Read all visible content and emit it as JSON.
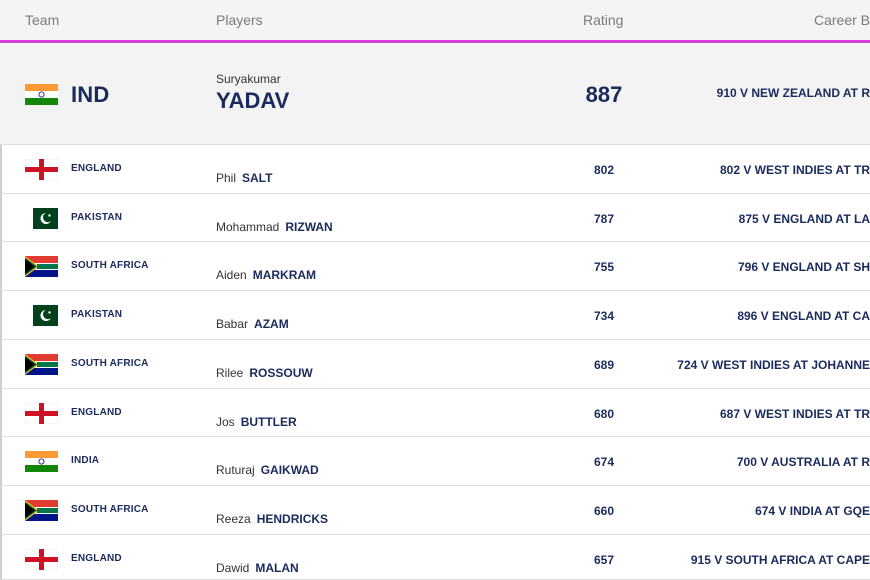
{
  "table": {
    "columns": [
      "Team",
      "Players",
      "Rating",
      "Career B"
    ],
    "rows": [
      [
        "IND",
        "Suryakumar",
        "YADAV",
        "887",
        "910 V NEW ZEALAND AT R"
      ],
      [
        "ENGLAND",
        "Phil",
        "SALT",
        "802",
        "802 V WEST INDIES AT TR"
      ],
      [
        "PAKISTAN",
        "Mohammad",
        "RIZWAN",
        "787",
        "875 V ENGLAND AT LA"
      ],
      [
        "SOUTH AFRICA",
        "Aiden",
        "MARKRAM",
        "755",
        "796 V ENGLAND AT SH"
      ],
      [
        "PAKISTAN",
        "Babar",
        "AZAM",
        "734",
        "896 V ENGLAND AT CA"
      ],
      [
        "SOUTH AFRICA",
        "Rilee",
        "ROSSOUW",
        "689",
        "724 V WEST INDIES AT JOHANNE"
      ],
      [
        "ENGLAND",
        "Jos",
        "BUTTLER",
        "680",
        "687 V WEST INDIES AT TR"
      ],
      [
        "INDIA",
        "Ruturaj",
        "GAIKWAD",
        "674",
        "700 V AUSTRALIA AT R"
      ],
      [
        "SOUTH AFRICA",
        "Reeza",
        "HENDRICKS",
        "660",
        "674 V INDIA AT GQE"
      ],
      [
        "ENGLAND",
        "Dawid",
        "MALAN",
        "657",
        "915 V SOUTH AFRICA AT CAPE"
      ]
    ]
  }
}
